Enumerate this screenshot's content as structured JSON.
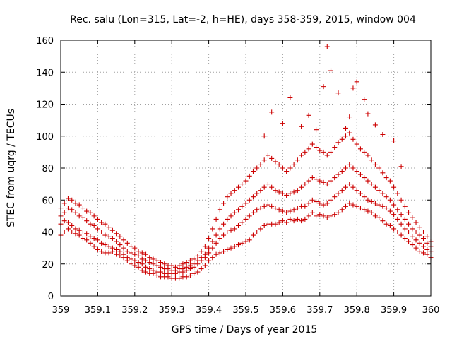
{
  "chart_data": {
    "type": "scatter",
    "title": "Rec. salu (Lon=315, Lat=-2, h=HE), days 358-359, 2015, window 004",
    "xlabel": "GPS time / Days of year 2015",
    "ylabel": "STEC from uqrg / TECUs",
    "xlim": [
      359,
      360
    ],
    "ylim": [
      0,
      160
    ],
    "x_ticks": [
      359,
      359.1,
      359.2,
      359.3,
      359.4,
      359.5,
      359.6,
      359.7,
      359.8,
      359.9,
      360
    ],
    "x_tick_labels": [
      "359",
      "359.1",
      "359.2",
      "359.3",
      "359.4",
      "359.5",
      "359.6",
      "359.7",
      "359.8",
      "359.9",
      "360"
    ],
    "y_ticks": [
      0,
      20,
      40,
      60,
      80,
      100,
      120,
      140,
      160
    ],
    "y_tick_labels": [
      "0",
      "20",
      "40",
      "60",
      "80",
      "100",
      "120",
      "140",
      "160"
    ],
    "grid": true,
    "marker": "plus",
    "color": "#cc0000",
    "series": [
      {
        "x": [
          359.0,
          359.01,
          359.02,
          359.03,
          359.04,
          359.05,
          359.06,
          359.07,
          359.08,
          359.09,
          359.1,
          359.11,
          359.12,
          359.13,
          359.14,
          359.15,
          359.16,
          359.17,
          359.18,
          359.19,
          359.2,
          359.21,
          359.22,
          359.23,
          359.24,
          359.25,
          359.26,
          359.27,
          359.28,
          359.29,
          359.3,
          359.31,
          359.32,
          359.33,
          359.34,
          359.35,
          359.36,
          359.37,
          359.38,
          359.39,
          359.4,
          359.41,
          359.42,
          359.43,
          359.44,
          359.45,
          359.46,
          359.47,
          359.48,
          359.49,
          359.5,
          359.51,
          359.52,
          359.53,
          359.54,
          359.55,
          359.56,
          359.57,
          359.58,
          359.59,
          359.6,
          359.61,
          359.62,
          359.63,
          359.64,
          359.65,
          359.66,
          359.67,
          359.68,
          359.69,
          359.7,
          359.71,
          359.72,
          359.73,
          359.74,
          359.75,
          359.76,
          359.77,
          359.78,
          359.79,
          359.8,
          359.81,
          359.82,
          359.83,
          359.84,
          359.85,
          359.86,
          359.87,
          359.88,
          359.89,
          359.9,
          359.91,
          359.92,
          359.93,
          359.94,
          359.95,
          359.96,
          359.97,
          359.98,
          359.99,
          360.0
        ],
        "y": [
          38,
          40,
          42,
          40,
          39,
          38,
          36,
          35,
          33,
          31,
          29,
          28,
          27,
          27,
          28,
          26,
          25,
          24,
          22,
          20,
          19,
          18,
          16,
          15,
          14,
          14,
          13,
          12,
          12,
          12,
          11,
          11,
          11,
          12,
          12,
          13,
          14,
          15,
          17,
          19,
          22,
          24,
          26,
          27,
          28,
          29,
          30,
          31,
          32,
          33,
          34,
          35,
          38,
          40,
          42,
          44,
          45,
          45,
          45,
          46,
          47,
          46,
          48,
          47,
          48,
          47,
          48,
          50,
          52,
          50,
          51,
          50,
          49,
          50,
          51,
          52,
          54,
          56,
          58,
          57,
          56,
          55,
          54,
          53,
          52,
          50,
          49,
          47,
          45,
          44,
          42,
          40,
          38,
          36,
          34,
          32,
          30,
          28,
          27,
          26,
          24
        ]
      },
      {
        "x": [
          359.0,
          359.01,
          359.02,
          359.03,
          359.04,
          359.05,
          359.06,
          359.07,
          359.08,
          359.09,
          359.1,
          359.11,
          359.12,
          359.13,
          359.14,
          359.15,
          359.16,
          359.17,
          359.18,
          359.19,
          359.2,
          359.21,
          359.22,
          359.23,
          359.24,
          359.25,
          359.26,
          359.27,
          359.28,
          359.29,
          359.3,
          359.31,
          359.32,
          359.33,
          359.34,
          359.35,
          359.36,
          359.37,
          359.38,
          359.39,
          359.4,
          359.41,
          359.42,
          359.43,
          359.44,
          359.45,
          359.46,
          359.47,
          359.48,
          359.49,
          359.5,
          359.51,
          359.52,
          359.53,
          359.54,
          359.55,
          359.56,
          359.57,
          359.58,
          359.59,
          359.6,
          359.61,
          359.62,
          359.63,
          359.64,
          359.65,
          359.66,
          359.67,
          359.68,
          359.69,
          359.7,
          359.71,
          359.72,
          359.73,
          359.74,
          359.75,
          359.76,
          359.77,
          359.78,
          359.79,
          359.8,
          359.81,
          359.82,
          359.83,
          359.84,
          359.85,
          359.86,
          359.87,
          359.88,
          359.89,
          359.9,
          359.91,
          359.92,
          359.93,
          359.94,
          359.95,
          359.96,
          359.97,
          359.98,
          359.99,
          360.0
        ],
        "y": [
          45,
          47,
          46,
          44,
          42,
          41,
          40,
          39,
          37,
          36,
          35,
          33,
          32,
          31,
          30,
          29,
          28,
          26,
          24,
          23,
          22,
          21,
          20,
          18,
          17,
          16,
          15,
          15,
          14,
          14,
          14,
          14,
          15,
          15,
          16,
          17,
          18,
          20,
          22,
          24,
          27,
          30,
          33,
          36,
          38,
          40,
          41,
          42,
          44,
          46,
          48,
          50,
          52,
          54,
          55,
          56,
          57,
          56,
          55,
          54,
          53,
          52,
          53,
          54,
          55,
          56,
          56,
          58,
          60,
          59,
          58,
          57,
          58,
          60,
          62,
          64,
          66,
          68,
          70,
          68,
          66,
          64,
          62,
          60,
          59,
          58,
          57,
          56,
          55,
          53,
          51,
          48,
          45,
          42,
          40,
          37,
          35,
          33,
          31,
          29,
          28
        ]
      },
      {
        "x": [
          359.0,
          359.01,
          359.02,
          359.03,
          359.04,
          359.05,
          359.06,
          359.07,
          359.08,
          359.09,
          359.1,
          359.11,
          359.12,
          359.13,
          359.14,
          359.15,
          359.16,
          359.17,
          359.18,
          359.19,
          359.2,
          359.21,
          359.22,
          359.23,
          359.24,
          359.25,
          359.26,
          359.27,
          359.28,
          359.29,
          359.3,
          359.31,
          359.32,
          359.33,
          359.34,
          359.35,
          359.36,
          359.37,
          359.38,
          359.39,
          359.4,
          359.41,
          359.42,
          359.43,
          359.44,
          359.45,
          359.46,
          359.47,
          359.48,
          359.49,
          359.5,
          359.51,
          359.52,
          359.53,
          359.54,
          359.55,
          359.56,
          359.57,
          359.58,
          359.59,
          359.6,
          359.61,
          359.62,
          359.63,
          359.64,
          359.65,
          359.66,
          359.67,
          359.68,
          359.69,
          359.7,
          359.71,
          359.72,
          359.73,
          359.74,
          359.75,
          359.76,
          359.77,
          359.78,
          359.79,
          359.8,
          359.81,
          359.82,
          359.83,
          359.84,
          359.85,
          359.86,
          359.87,
          359.88,
          359.89,
          359.9,
          359.91,
          359.92,
          359.93,
          359.94,
          359.95,
          359.96,
          359.97,
          359.98,
          359.99,
          360.0
        ],
        "y": [
          50,
          52,
          55,
          54,
          52,
          50,
          49,
          47,
          45,
          44,
          42,
          40,
          38,
          37,
          36,
          34,
          32,
          30,
          28,
          27,
          26,
          25,
          23,
          22,
          21,
          20,
          19,
          18,
          17,
          17,
          16,
          16,
          17,
          17,
          18,
          19,
          20,
          22,
          24,
          26,
          30,
          34,
          38,
          42,
          45,
          48,
          50,
          52,
          54,
          56,
          58,
          60,
          62,
          64,
          66,
          68,
          70,
          68,
          66,
          65,
          64,
          63,
          64,
          65,
          66,
          68,
          70,
          72,
          74,
          73,
          72,
          71,
          70,
          72,
          74,
          76,
          78,
          80,
          82,
          80,
          78,
          76,
          74,
          72,
          70,
          68,
          66,
          64,
          62,
          60,
          57,
          54,
          51,
          48,
          45,
          42,
          40,
          38,
          36,
          33,
          31
        ]
      },
      {
        "x": [
          359.0,
          359.01,
          359.02,
          359.03,
          359.04,
          359.05,
          359.06,
          359.07,
          359.08,
          359.09,
          359.1,
          359.11,
          359.12,
          359.13,
          359.14,
          359.15,
          359.16,
          359.17,
          359.18,
          359.19,
          359.2,
          359.21,
          359.22,
          359.23,
          359.24,
          359.25,
          359.26,
          359.27,
          359.28,
          359.29,
          359.3,
          359.31,
          359.32,
          359.33,
          359.34,
          359.35,
          359.36,
          359.37,
          359.38,
          359.39,
          359.4,
          359.41,
          359.42,
          359.43,
          359.44,
          359.45,
          359.46,
          359.47,
          359.48,
          359.49,
          359.5,
          359.51,
          359.52,
          359.53,
          359.54,
          359.55,
          359.56,
          359.57,
          359.58,
          359.59,
          359.6,
          359.61,
          359.62,
          359.63,
          359.64,
          359.65,
          359.66,
          359.67,
          359.68,
          359.69,
          359.7,
          359.71,
          359.72,
          359.73,
          359.74,
          359.75,
          359.76,
          359.77,
          359.78,
          359.79,
          359.8,
          359.81,
          359.82,
          359.83,
          359.84,
          359.85,
          359.86,
          359.87,
          359.88,
          359.89,
          359.9,
          359.91,
          359.92,
          359.93,
          359.94,
          359.95,
          359.96,
          359.97,
          359.98,
          359.99,
          360.0
        ],
        "y": [
          55,
          58,
          61,
          60,
          58,
          57,
          55,
          53,
          52,
          50,
          48,
          46,
          45,
          43,
          41,
          39,
          37,
          35,
          33,
          31,
          30,
          28,
          27,
          26,
          24,
          23,
          22,
          21,
          20,
          19,
          19,
          18,
          19,
          20,
          21,
          22,
          23,
          25,
          28,
          31,
          36,
          42,
          48,
          54,
          58,
          62,
          64,
          66,
          68,
          70,
          72,
          75,
          78,
          80,
          82,
          85,
          88,
          86,
          84,
          82,
          80,
          78,
          80,
          82,
          85,
          88,
          90,
          92,
          95,
          93,
          91,
          90,
          88,
          90,
          93,
          96,
          98,
          100,
          102,
          98,
          95,
          92,
          90,
          88,
          85,
          82,
          80,
          77,
          74,
          72,
          68,
          64,
          60,
          56,
          52,
          49,
          46,
          43,
          40,
          37,
          34
        ]
      },
      {
        "x": [
          359.55,
          359.57,
          359.6,
          359.62,
          359.65,
          359.67,
          359.69,
          359.71,
          359.72,
          359.73,
          359.75,
          359.77,
          359.78,
          359.79,
          359.8,
          359.82,
          359.83,
          359.85,
          359.87,
          359.9,
          359.92
        ],
        "y": [
          100,
          115,
          108,
          124,
          106,
          113,
          104,
          131,
          156,
          141,
          127,
          105,
          112,
          130,
          134,
          123,
          114,
          107,
          101,
          97,
          81
        ]
      }
    ]
  }
}
